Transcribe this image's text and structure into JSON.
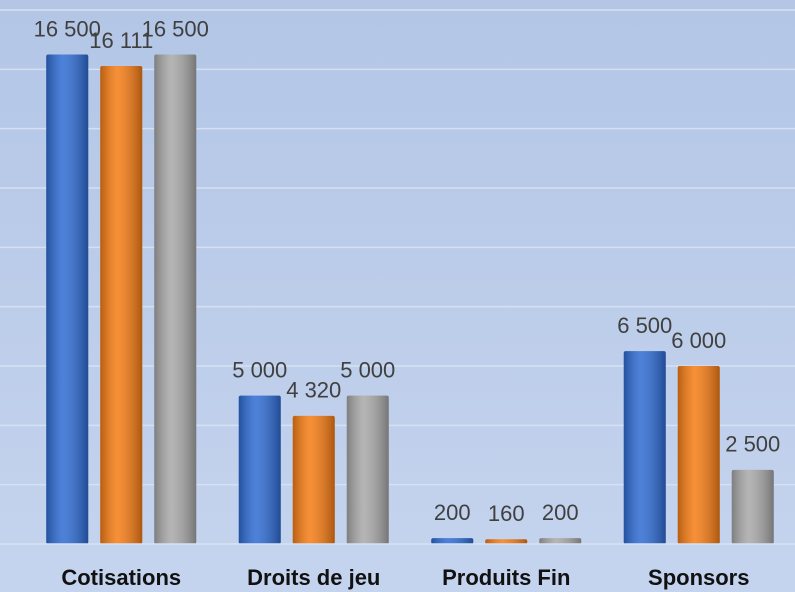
{
  "chart_data": {
    "type": "bar",
    "categories": [
      "Cotisations",
      "Droits de jeu",
      "Produits Fin",
      "Sponsors"
    ],
    "series": [
      {
        "color": "#2e6bd3",
        "values": [
          16500,
          5000,
          200,
          6500
        ],
        "value_labels": [
          "16 500",
          "5 000",
          "200",
          "6 500"
        ]
      },
      {
        "color": "#f57c14",
        "values": [
          16111,
          4320,
          160,
          6000
        ],
        "value_labels": [
          "16 111",
          "4 320",
          "160",
          "6 000"
        ]
      },
      {
        "color": "#a8a8a8",
        "values": [
          16500,
          5000,
          200,
          2500
        ],
        "value_labels": [
          "16 500",
          "5 000",
          "200",
          "2 500"
        ]
      }
    ],
    "ylim": [
      0,
      18000
    ],
    "yticks": [
      0,
      2000,
      4000,
      6000,
      8000,
      10000,
      12000,
      14000,
      16000,
      18000
    ],
    "grid": true
  }
}
